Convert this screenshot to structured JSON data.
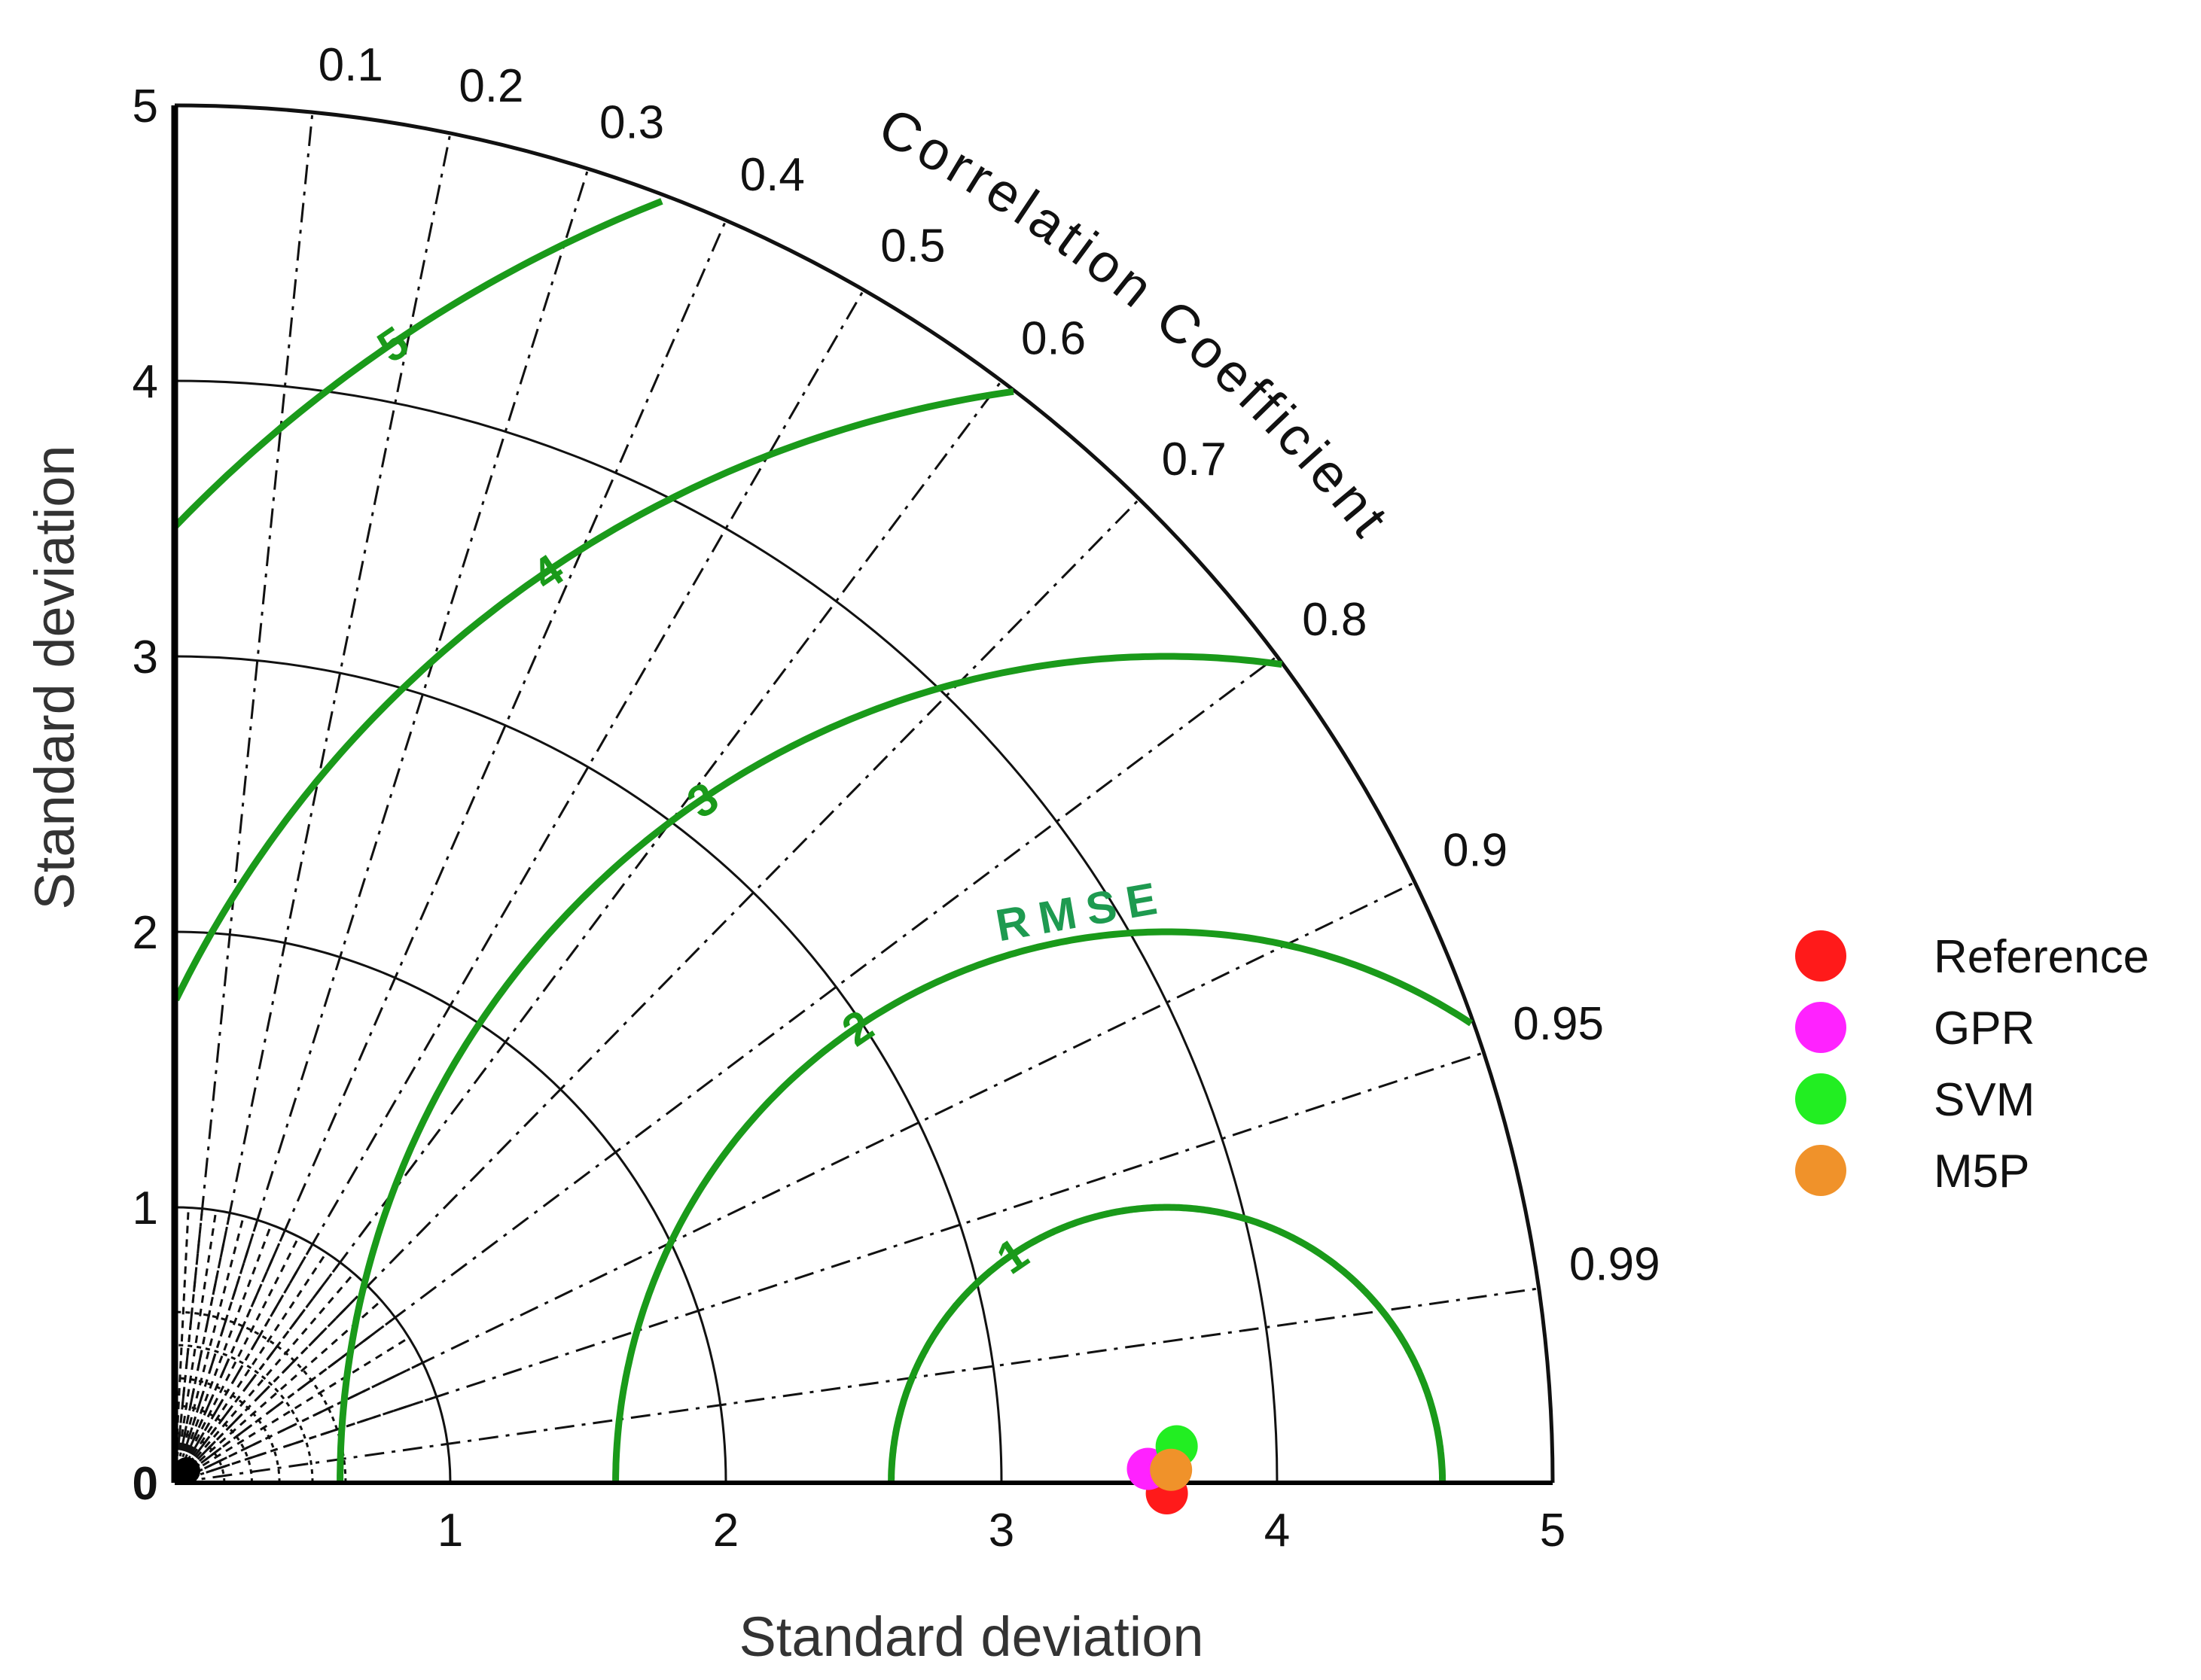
{
  "chart_data": {
    "type": "taylor-diagram",
    "title": "",
    "xlabel": "Standard deviation",
    "ylabel": "Standard deviation",
    "arc_title": "Correlation Coefficient",
    "std_range": [
      0,
      5
    ],
    "std_ticks": [
      "0",
      "1",
      "2",
      "3",
      "4",
      "5"
    ],
    "correlation_ticks": [
      "0.1",
      "0.2",
      "0.3",
      "0.4",
      "0.5",
      "0.6",
      "0.7",
      "0.8",
      "0.9",
      "0.95",
      "0.99"
    ],
    "rmse_label": "RMSE",
    "rmse_contours": [
      "1",
      "2",
      "3",
      "4",
      "5"
    ],
    "reference_std": 3.6,
    "colors": {
      "rmse": "#1a9a1a",
      "rmse_label": "#1e9a50",
      "grid": "#111111"
    },
    "series": [
      {
        "name": "Reference",
        "std": 3.6,
        "correlation": 1.0,
        "color": "#ff1a1a"
      },
      {
        "name": "GPR",
        "std": 3.57,
        "correlation": 0.9999,
        "color": "#ff22ff"
      },
      {
        "name": "SVM",
        "std": 3.62,
        "correlation": 0.9998,
        "color": "#22ee22"
      },
      {
        "name": "M5P",
        "std": 3.61,
        "correlation": 0.99995,
        "color": "#f0922a"
      }
    ]
  }
}
